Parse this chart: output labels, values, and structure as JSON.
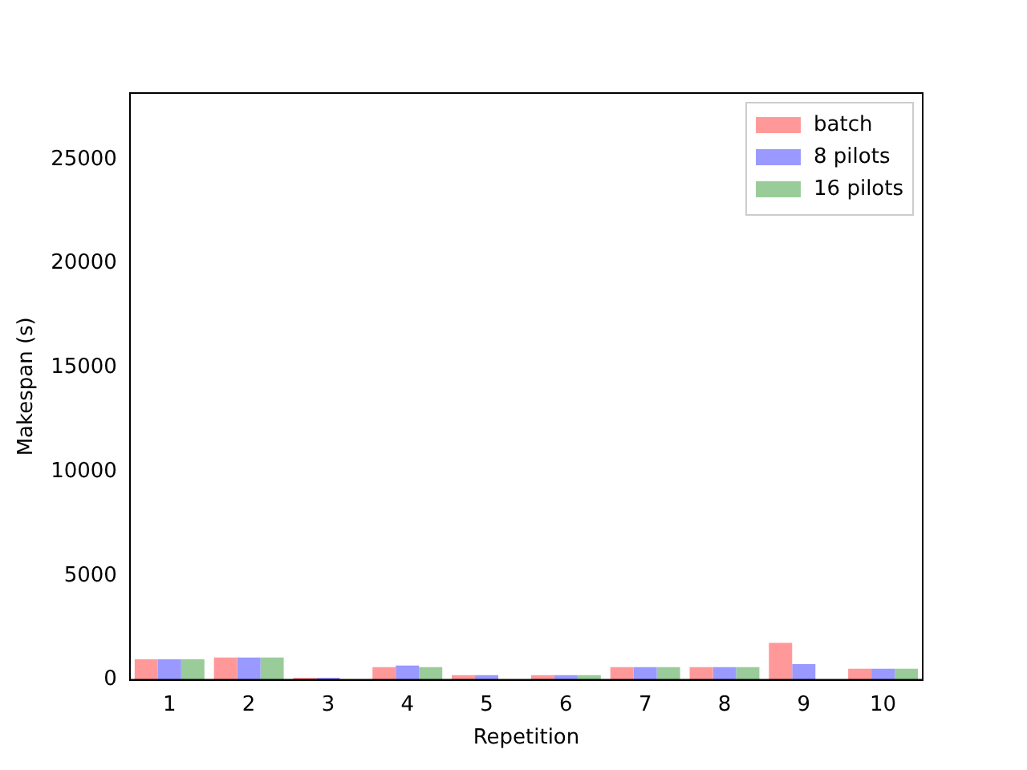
{
  "chart_data": {
    "type": "bar",
    "xlabel": "Repetition",
    "ylabel": "Makespan (s)",
    "categories": [
      "1",
      "2",
      "3",
      "4",
      "5",
      "6",
      "7",
      "8",
      "9",
      "10"
    ],
    "series": [
      {
        "name": "batch",
        "color": "#ff9999",
        "values": [
          990,
          1070,
          100,
          610,
          230,
          230,
          610,
          610,
          1780,
          530
        ]
      },
      {
        "name": "8 pilots",
        "color": "#9999ff",
        "values": [
          990,
          1070,
          100,
          690,
          230,
          230,
          610,
          610,
          760,
          530
        ]
      },
      {
        "name": "16 pilots",
        "color": "#99cc99",
        "values": [
          990,
          1070,
          null,
          610,
          null,
          230,
          610,
          610,
          null,
          530
        ]
      }
    ],
    "ylim": [
      0,
      28200
    ],
    "yticks": [
      0,
      5000,
      10000,
      15000,
      20000,
      25000
    ],
    "grid": false,
    "legend": "top right"
  }
}
